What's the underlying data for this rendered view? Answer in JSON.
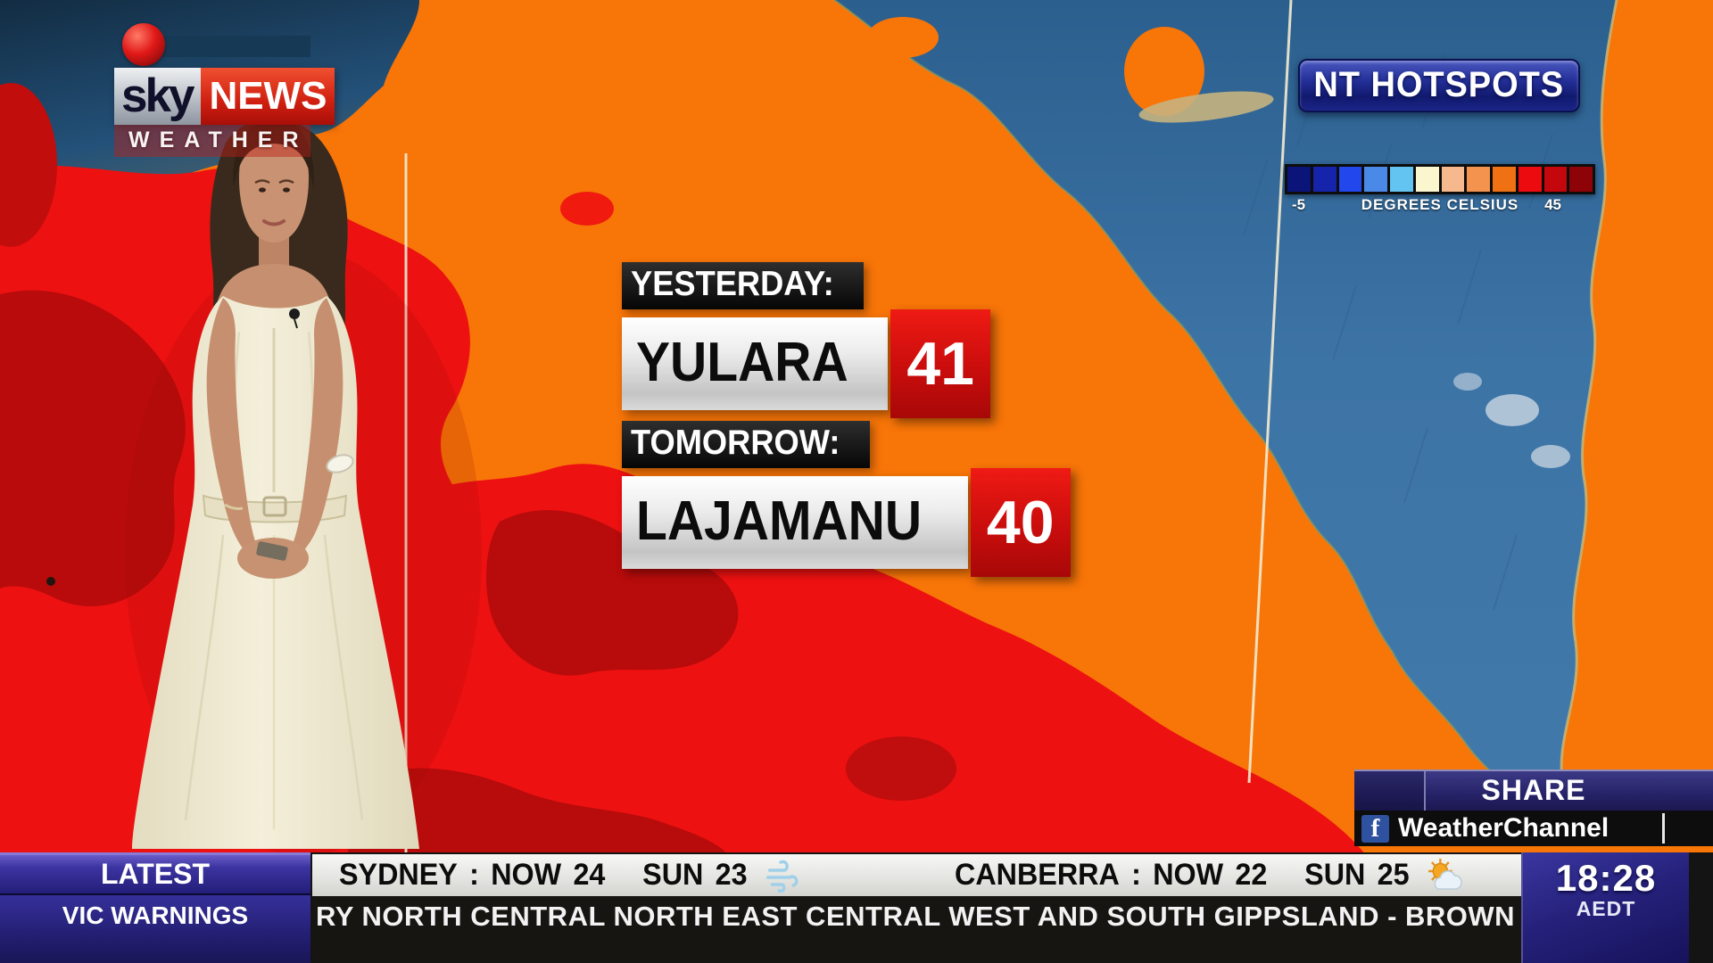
{
  "brand": {
    "sky": "sky",
    "news": "NEWS",
    "weather": "WEATHER",
    "dot_icon": "record-dot-icon"
  },
  "banner": {
    "title": "NT HOTSPOTS"
  },
  "scale": {
    "min": "-5",
    "label": "DEGREES CELSIUS",
    "max": "45",
    "swatches": [
      "#0b1478",
      "#1624ac",
      "#2247ec",
      "#4b89e8",
      "#63c4f2",
      "#fcf6cf",
      "#f6b98e",
      "#f3934e",
      "#ef7113",
      "#ec0c10",
      "#c4070c",
      "#8e0308"
    ]
  },
  "hotspots": [
    {
      "label": "YESTERDAY:",
      "place": "YULARA",
      "temp": "41"
    },
    {
      "label": "TOMORROW:",
      "place": "LAJAMANU",
      "temp": "40"
    }
  ],
  "share": {
    "title": "SHARE",
    "facebook_letter": "f",
    "icon": "facebook-icon",
    "account": "WeatherChannel"
  },
  "ticker": {
    "latest": "LATEST",
    "warnings": "VIC WARNINGS",
    "cities": [
      {
        "name": "SYDNEY",
        "sep": ":",
        "now_label": "NOW",
        "now_value": "24",
        "day_label": "SUN",
        "day_value": "23",
        "icon": "wind-icon"
      },
      {
        "name": "CANBERRA",
        "sep": ":",
        "now_label": "NOW",
        "now_value": "22",
        "day_label": "SUN",
        "day_value": "25",
        "icon": "partly-cloudy-icon"
      }
    ],
    "scroll": "RY NORTH CENTRAL NORTH EAST CENTRAL WEST AND SOUTH GIPPSLAND - BROWN ROT W",
    "time": "18:28",
    "timezone": "AEDT"
  },
  "colors": {
    "map_orange": "#f87508",
    "map_red": "#ee1111",
    "map_dark_red": "#b90b0b",
    "gulf_blue": "#3d74a6",
    "banner_blue": "#1a2380",
    "temp_box_red": "#cf0f0e",
    "ticker_blue": "#2a2478"
  }
}
